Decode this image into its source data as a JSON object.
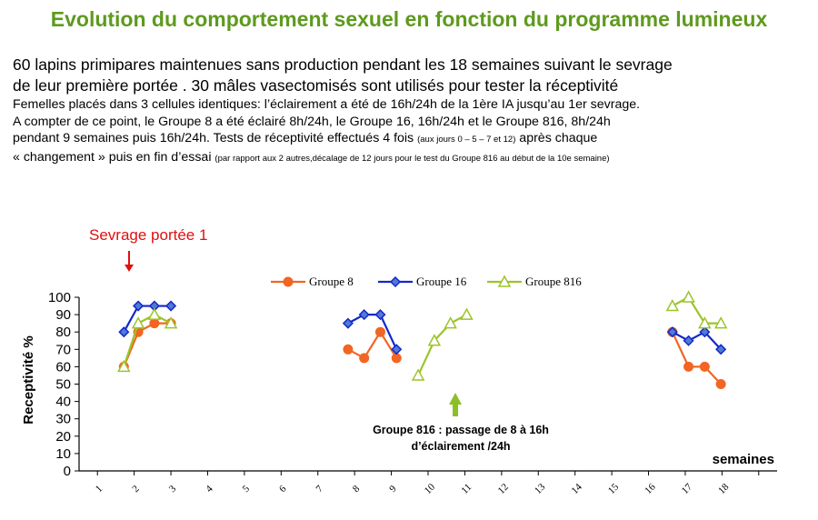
{
  "title": "Evolution du comportement sexuel en fonction du programme lumineux",
  "intro": {
    "line1": "60 lapins primipares maintenues sans production pendant les 18 semaines suivant le sevrage",
    "line2": "de leur première portée . 30 mâles vasectomisés sont utilisés pour tester la réceptivité",
    "line3": "Femelles placés dans 3 cellules identiques: l’éclairement a été de 16h/24h de la 1ère IA  jusqu’au 1er sevrage.",
    "line4": "A compter de ce point, le Groupe 8 a été éclairé 8h/24h, le Groupe 16, 16h/24h et le Groupe 816, 8h/24h",
    "line5a": "pendant 9 semaines puis 16h/24h. Tests de réceptivité effectués 4 fois ",
    "line5b": "(aux jours 0 – 5 – 7 et 12)",
    "line5c": " après chaque",
    "line6a": "« changement » puis en fin d’essai ",
    "line6b": "(par rapport aux 2 autres,décalage de 12 jours pour le test du Groupe 816 au début de la 10e semaine)"
  },
  "annotations": {
    "weaning": "Sevrage portée 1",
    "switch_line1": "Groupe 816 : passage de 8 à 16h",
    "switch_line2": "d’éclairement /24h"
  },
  "colors": {
    "title": "#5e9a1e",
    "groupe8": "#f26522",
    "groupe16": "#1428c8",
    "groupe816": "#9cc42a",
    "weaning_arrow": "#e01010",
    "switch_arrow": "#8cbf26"
  },
  "chart_data": {
    "type": "line",
    "xlabel": "semaines",
    "ylabel": "Receptivité %",
    "ylim": [
      0,
      100
    ],
    "yticks": [
      0,
      10,
      20,
      30,
      40,
      50,
      60,
      70,
      80,
      90,
      100
    ],
    "xticks": [
      "1",
      "2",
      "3",
      "4",
      "5",
      "6",
      "7",
      "8",
      "9",
      "10",
      "11",
      "12",
      "13",
      "14",
      "15",
      "16",
      "17",
      "18"
    ],
    "xlim": [
      0,
      19
    ],
    "grid": false,
    "legend": "top",
    "series": [
      {
        "name": "Groupe 8",
        "marker": "circle",
        "segments": [
          [
            [
              1.22,
              60
            ],
            [
              1.61,
              80
            ],
            [
              2.05,
              85
            ],
            [
              2.5,
              85
            ]
          ],
          [
            [
              7.32,
              70
            ],
            [
              7.76,
              65
            ],
            [
              8.2,
              80
            ],
            [
              8.64,
              65
            ]
          ],
          [
            [
              16.15,
              80
            ],
            [
              16.59,
              60
            ],
            [
              17.03,
              60
            ],
            [
              17.47,
              50
            ]
          ]
        ]
      },
      {
        "name": "Groupe 16",
        "marker": "diamond",
        "segments": [
          [
            [
              1.22,
              80
            ],
            [
              1.61,
              95
            ],
            [
              2.05,
              95
            ],
            [
              2.5,
              95
            ]
          ],
          [
            [
              7.32,
              85
            ],
            [
              7.76,
              90
            ],
            [
              8.2,
              90
            ],
            [
              8.64,
              70
            ]
          ],
          [
            [
              16.15,
              80
            ],
            [
              16.59,
              75
            ],
            [
              17.03,
              80
            ],
            [
              17.47,
              70
            ]
          ]
        ]
      },
      {
        "name": "Groupe 816",
        "marker": "triangle",
        "segments": [
          [
            [
              1.22,
              60
            ],
            [
              1.61,
              85
            ],
            [
              2.05,
              90
            ],
            [
              2.5,
              85
            ]
          ],
          [
            [
              9.23,
              55
            ],
            [
              9.67,
              75
            ],
            [
              10.11,
              85
            ],
            [
              10.55,
              90
            ]
          ],
          [
            [
              16.15,
              95
            ],
            [
              16.59,
              100
            ],
            [
              17.03,
              85
            ],
            [
              17.47,
              85
            ]
          ]
        ]
      }
    ]
  }
}
